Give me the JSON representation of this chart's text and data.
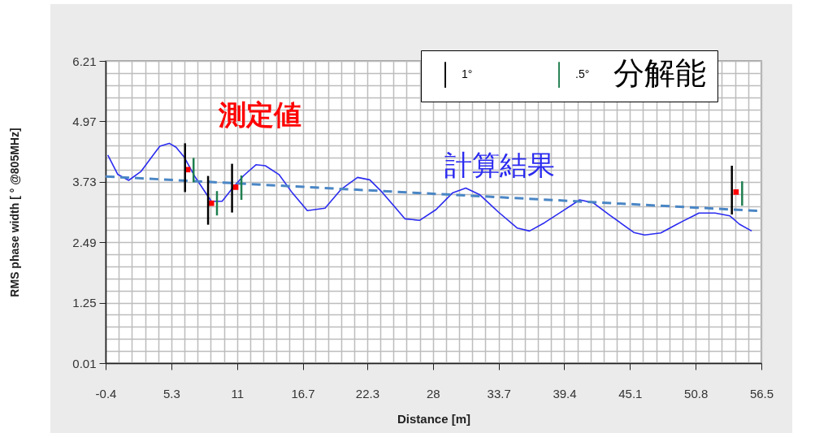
{
  "chart_data": {
    "type": "line",
    "xlabel": "Distance [m]",
    "ylabel": "RMS phase width [ ° @805MHz]",
    "legend_title": "分解能",
    "xlim": [
      -0.4,
      56.5
    ],
    "xticks": [
      -0.4,
      5.3,
      11,
      16.7,
      22.3,
      28,
      33.7,
      39.4,
      45.1,
      50.8,
      56.5
    ],
    "ylim": [
      0.01,
      6.21
    ],
    "yticks": [
      0.01,
      1.25,
      2.49,
      3.73,
      4.97,
      6.21
    ],
    "grid": true,
    "legend": "top right",
    "series": [
      {
        "name": "計算結果",
        "color": "#2b2bf0",
        "line_style": "solid",
        "x": [
          -0.21,
          0.66,
          1.6,
          2.66,
          3.6,
          4.3,
          5.12,
          5.71,
          6.41,
          7.36,
          8.77,
          9.71,
          10.64,
          11.59,
          12.64,
          13.46,
          14.64,
          15.81,
          17.1,
          18.64,
          20.05,
          21.46,
          22.52,
          23.58,
          25.58,
          26.86,
          28.27,
          29.69,
          30.85,
          32.04,
          33.68,
          35.33,
          36.38,
          37.68,
          39.32,
          40.73,
          41.91,
          43.32,
          45.44,
          46.37,
          47.77,
          49.18,
          49.67,
          50.6,
          51.08,
          52.49,
          53.78,
          54.6,
          55.66
        ],
        "values": [
          4.28,
          3.88,
          3.76,
          3.94,
          4.24,
          4.46,
          4.52,
          4.44,
          4.24,
          3.83,
          3.33,
          3.33,
          3.61,
          3.86,
          4.08,
          4.06,
          3.88,
          3.5,
          3.14,
          3.19,
          3.58,
          3.82,
          3.77,
          3.52,
          2.97,
          2.94,
          3.16,
          3.5,
          3.6,
          3.47,
          3.11,
          2.78,
          2.72,
          2.89,
          3.14,
          3.36,
          3.3,
          3.05,
          2.69,
          2.64,
          2.68,
          2.86,
          2.92,
          3.03,
          3.09,
          3.09,
          3.03,
          2.86,
          2.72
        ]
      },
      {
        "color": "#4a86c5",
        "line_style": "dashed",
        "x": [
          -0.4,
          56.5
        ],
        "values": [
          3.84,
          3.13
        ]
      },
      {
        "name": "測定値",
        "type": "scatter",
        "color": "#ff0000",
        "marker": "square",
        "x": [
          6.72,
          8.78,
          10.88,
          54.3
        ],
        "values": [
          3.98,
          3.29,
          3.62,
          3.52
        ]
      },
      {
        "name": "1°",
        "type": "bar",
        "color": "#000000",
        "x": [
          6.49,
          8.49,
          10.57,
          53.94
        ],
        "base": [
          3.52,
          2.85,
          3.1,
          3.06
        ],
        "values": [
          1,
          1,
          1,
          1
        ]
      },
      {
        "name": ".5°",
        "type": "bar",
        "color": "#1f7f4f",
        "x": [
          7.23,
          9.26,
          11.38,
          54.83
        ],
        "base": [
          3.72,
          3.04,
          3.36,
          3.24
        ],
        "values": [
          0.5,
          0.5,
          0.5,
          0.5
        ]
      }
    ]
  }
}
